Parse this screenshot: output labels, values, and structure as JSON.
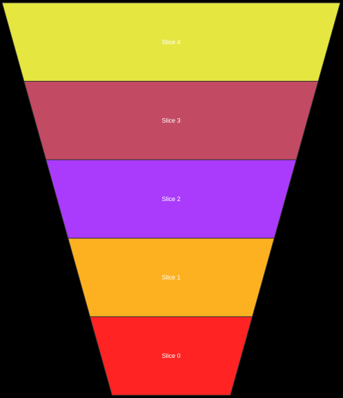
{
  "chart_data": {
    "type": "funnel",
    "title": "",
    "categories": [
      "Slice 4",
      "Slice 3",
      "Slice 2",
      "Slice 1",
      "Slice 0"
    ],
    "colors": [
      "#e5e63f",
      "#c34a63",
      "#ab3bfc",
      "#fdb121",
      "#ff2323"
    ],
    "width_fractions": [
      1.0,
      0.87,
      0.74,
      0.61,
      0.48
    ],
    "bottom_width_fraction": 0.35,
    "legend": "none",
    "grid": false
  }
}
